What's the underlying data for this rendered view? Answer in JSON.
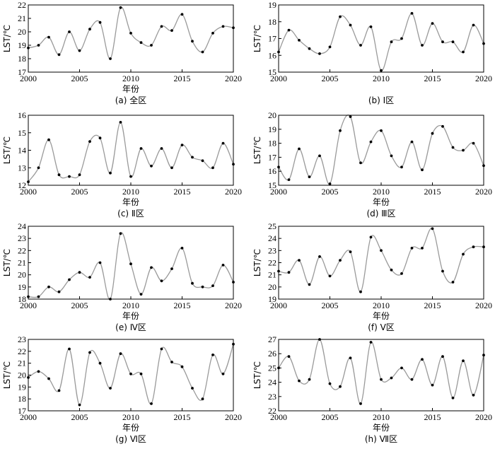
{
  "chart_data": [
    {
      "type": "line",
      "caption": "(a) 全区",
      "xlabel": "年份",
      "ylabel": "LST/℃",
      "xlim": [
        2000,
        2020
      ],
      "ylim": [
        17,
        22
      ],
      "xticks": [
        "2000",
        "2005",
        "2010",
        "2015",
        "2020"
      ],
      "yticks": [
        "17",
        "18",
        "19",
        "20",
        "21",
        "22"
      ],
      "x": [
        2000,
        2001,
        2002,
        2003,
        2004,
        2005,
        2006,
        2007,
        2008,
        2009,
        2010,
        2011,
        2012,
        2013,
        2014,
        2015,
        2016,
        2017,
        2018,
        2019,
        2020
      ],
      "values": [
        18.8,
        19.0,
        19.6,
        18.3,
        20.0,
        18.6,
        20.2,
        20.7,
        18.0,
        21.8,
        19.9,
        19.2,
        19.0,
        20.4,
        20.1,
        21.3,
        19.3,
        18.5,
        19.9,
        20.4,
        20.3
      ]
    },
    {
      "type": "line",
      "caption": "(b) Ⅰ区",
      "xlabel": "",
      "ylabel": "LST/℃",
      "xlim": [
        2000,
        2020
      ],
      "ylim": [
        15,
        19
      ],
      "xticks": [
        "2000",
        "2005",
        "2010",
        "2015",
        "2020"
      ],
      "yticks": [
        "15",
        "16",
        "17",
        "18",
        "19"
      ],
      "x": [
        2000,
        2001,
        2002,
        2003,
        2004,
        2005,
        2006,
        2007,
        2008,
        2009,
        2010,
        2011,
        2012,
        2013,
        2014,
        2015,
        2016,
        2017,
        2018,
        2019,
        2020
      ],
      "values": [
        16.2,
        17.5,
        16.9,
        16.4,
        16.1,
        16.5,
        18.3,
        17.8,
        16.6,
        17.7,
        15.1,
        16.8,
        17.0,
        18.5,
        16.6,
        17.9,
        16.8,
        16.8,
        16.2,
        17.8,
        16.7
      ]
    },
    {
      "type": "line",
      "caption": "(c) Ⅱ区",
      "xlabel": "年份",
      "ylabel": "LST/℃",
      "xlim": [
        2000,
        2020
      ],
      "ylim": [
        12,
        16
      ],
      "xticks": [
        "2000",
        "2005",
        "2010",
        "2015",
        "2020"
      ],
      "yticks": [
        "12",
        "13",
        "14",
        "15",
        "16"
      ],
      "x": [
        2000,
        2001,
        2002,
        2003,
        2004,
        2005,
        2006,
        2007,
        2008,
        2009,
        2010,
        2011,
        2012,
        2013,
        2014,
        2015,
        2016,
        2017,
        2018,
        2019,
        2020
      ],
      "values": [
        12.2,
        13.0,
        14.6,
        12.6,
        12.5,
        12.6,
        14.5,
        14.7,
        12.7,
        15.6,
        12.5,
        14.1,
        13.1,
        14.1,
        13.0,
        14.3,
        13.6,
        13.4,
        13.0,
        14.4,
        13.2
      ]
    },
    {
      "type": "line",
      "caption": "(d) Ⅲ区",
      "xlabel": "年份",
      "ylabel": "LST/℃",
      "xlim": [
        2000,
        2020
      ],
      "ylim": [
        15,
        20
      ],
      "xticks": [
        "2000",
        "2005",
        "2010",
        "2015",
        "2020"
      ],
      "yticks": [
        "15",
        "16",
        "17",
        "18",
        "19",
        "20"
      ],
      "x": [
        2000,
        2001,
        2002,
        2003,
        2004,
        2005,
        2006,
        2007,
        2008,
        2009,
        2010,
        2011,
        2012,
        2013,
        2014,
        2015,
        2016,
        2017,
        2018,
        2019,
        2020
      ],
      "values": [
        16.3,
        15.4,
        17.6,
        15.6,
        17.1,
        15.1,
        18.9,
        19.9,
        16.6,
        18.1,
        18.9,
        17.1,
        16.3,
        18.1,
        16.1,
        18.7,
        19.2,
        17.7,
        17.5,
        18.0,
        16.4
      ]
    },
    {
      "type": "line",
      "caption": "(e) Ⅳ区",
      "xlabel": "年份",
      "ylabel": "LST/℃",
      "xlim": [
        2000,
        2020
      ],
      "ylim": [
        18,
        24
      ],
      "xticks": [
        "2000",
        "2005",
        "2010",
        "2015",
        "2020"
      ],
      "yticks": [
        "18",
        "19",
        "20",
        "21",
        "22",
        "23",
        "24"
      ],
      "x": [
        2000,
        2001,
        2002,
        2003,
        2004,
        2005,
        2006,
        2007,
        2008,
        2009,
        2010,
        2011,
        2012,
        2013,
        2014,
        2015,
        2016,
        2017,
        2018,
        2019,
        2020
      ],
      "values": [
        18.2,
        18.2,
        19.0,
        18.6,
        19.6,
        20.2,
        19.8,
        21.0,
        18.0,
        23.4,
        20.9,
        18.4,
        20.6,
        19.5,
        20.5,
        22.2,
        19.3,
        19.0,
        19.1,
        20.8,
        19.4
      ]
    },
    {
      "type": "line",
      "caption": "(f) Ⅴ区",
      "xlabel": "年份",
      "ylabel": "LST/℃",
      "xlim": [
        2000,
        2020
      ],
      "ylim": [
        19,
        25
      ],
      "xticks": [
        "2000",
        "2005",
        "2010",
        "2015",
        "2020"
      ],
      "yticks": [
        "19",
        "20",
        "21",
        "22",
        "23",
        "24",
        "25"
      ],
      "x": [
        2000,
        2001,
        2002,
        2003,
        2004,
        2005,
        2006,
        2007,
        2008,
        2009,
        2010,
        2011,
        2012,
        2013,
        2014,
        2015,
        2016,
        2017,
        2018,
        2019,
        2020
      ],
      "values": [
        21.3,
        21.2,
        22.2,
        20.2,
        22.5,
        20.9,
        22.2,
        22.9,
        19.6,
        24.1,
        23.0,
        21.4,
        21.1,
        23.2,
        23.2,
        24.8,
        21.3,
        20.4,
        22.7,
        23.3,
        23.3
      ]
    },
    {
      "type": "line",
      "caption": "(g) Ⅵ区",
      "xlabel": "年份",
      "ylabel": "LST/℃",
      "xlim": [
        2000,
        2020
      ],
      "ylim": [
        17,
        23
      ],
      "xticks": [
        "2000",
        "2005",
        "2010",
        "2015",
        "2020"
      ],
      "yticks": [
        "17",
        "18",
        "19",
        "20",
        "21",
        "22",
        "23"
      ],
      "x": [
        2000,
        2001,
        2002,
        2003,
        2004,
        2005,
        2006,
        2007,
        2008,
        2009,
        2010,
        2011,
        2012,
        2013,
        2014,
        2015,
        2016,
        2017,
        2018,
        2019,
        2020
      ],
      "values": [
        19.8,
        20.3,
        19.7,
        18.7,
        22.2,
        17.5,
        21.9,
        21.0,
        18.9,
        21.8,
        20.1,
        20.1,
        17.6,
        22.2,
        21.1,
        20.7,
        18.9,
        18.0,
        21.7,
        20.1,
        22.6
      ]
    },
    {
      "type": "line",
      "caption": "(h) Ⅶ区",
      "xlabel": "年份",
      "ylabel": "LST/℃",
      "xlim": [
        2000,
        2020
      ],
      "ylim": [
        22,
        27
      ],
      "xticks": [
        "2000",
        "2005",
        "2010",
        "2015",
        "2020"
      ],
      "yticks": [
        "22",
        "23",
        "24",
        "25",
        "26",
        "27"
      ],
      "x": [
        2000,
        2001,
        2002,
        2003,
        2004,
        2005,
        2006,
        2007,
        2008,
        2009,
        2010,
        2011,
        2012,
        2013,
        2014,
        2015,
        2016,
        2017,
        2018,
        2019,
        2020
      ],
      "values": [
        25.0,
        25.8,
        24.1,
        24.2,
        27.0,
        23.9,
        23.7,
        25.7,
        22.5,
        26.8,
        24.2,
        24.3,
        25.0,
        24.2,
        25.6,
        23.8,
        25.8,
        22.9,
        25.5,
        23.1,
        25.9
      ]
    }
  ]
}
